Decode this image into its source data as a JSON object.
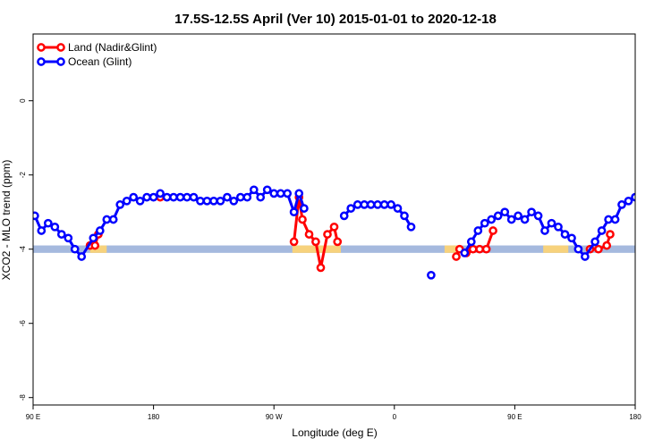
{
  "chart_data": {
    "type": "line",
    "title": "17.5S-12.5S April (Ver 10)   2015-01-01 to 2020-12-18",
    "xlabel": "Longitude (deg E)",
    "ylabel": "XCO2 - MLO trend (ppm)",
    "xlim": [
      90,
      450
    ],
    "ylim": [
      -8.2,
      1.8
    ],
    "x_ticks": [
      {
        "value": 90,
        "label": "90 E"
      },
      {
        "value": 162,
        "label": "180"
      },
      {
        "value": 234,
        "label": "90 W"
      },
      {
        "value": 306,
        "label": "0"
      },
      {
        "value": 378,
        "label": "90 E"
      },
      {
        "value": 450,
        "label": "180"
      }
    ],
    "y_ticks": [
      {
        "value": 0,
        "label": "0"
      },
      {
        "value": -2,
        "label": "-2"
      },
      {
        "value": -4,
        "label": "-4"
      },
      {
        "value": -6,
        "label": "-6"
      },
      {
        "value": -8,
        "label": "-8"
      }
    ],
    "legend_position": "top-left",
    "band": {
      "y_range": [
        -4.1,
        -3.9
      ],
      "color": "#a5b9de"
    },
    "land_segments": [
      [
        124,
        134
      ],
      [
        245,
        274
      ],
      [
        336,
        346
      ],
      [
        395,
        410
      ],
      [
        452,
        466
      ],
      [
        492,
        503
      ],
      [
        552,
        561
      ],
      [
        612,
        620
      ],
      [
        640,
        657
      ]
    ],
    "land_color": "#f7d27c",
    "series": [
      {
        "name": "Land (Nadir&Glint)",
        "color": "#ff0000",
        "segments": [
          [
            [
              124,
              -3.9
            ],
            [
              127,
              -3.9
            ],
            [
              129,
              -3.6
            ]
          ],
          [
            [
              166,
              -2.6
            ]
          ],
          [
            [
              246,
              -3.8
            ],
            [
              249,
              -2.6
            ],
            [
              251,
              -3.2
            ],
            [
              255,
              -3.6
            ],
            [
              259,
              -3.8
            ],
            [
              262,
              -4.5
            ],
            [
              266,
              -3.6
            ],
            [
              270,
              -3.4
            ],
            [
              272,
              -3.8
            ]
          ],
          [
            [
              343,
              -4.2
            ],
            [
              345,
              -4.0
            ],
            [
              349,
              -4.1
            ],
            [
              353,
              -4.0
            ],
            [
              357,
              -4.0
            ],
            [
              361,
              -4.0
            ],
            [
              365,
              -3.5
            ]
          ],
          [
            [
              423,
              -4.0
            ],
            [
              428,
              -4.0
            ],
            [
              433,
              -3.9
            ],
            [
              435,
              -3.6
            ]
          ]
        ]
      },
      {
        "name": "Ocean (Glint)",
        "color": "#0000ff",
        "segments": [
          [
            [
              91,
              -3.1
            ],
            [
              95,
              -3.5
            ],
            [
              99,
              -3.3
            ],
            [
              103,
              -3.4
            ],
            [
              107,
              -3.6
            ],
            [
              111,
              -3.7
            ],
            [
              115,
              -4.0
            ],
            [
              119,
              -4.2
            ],
            [
              126,
              -3.7
            ],
            [
              130,
              -3.5
            ],
            [
              134,
              -3.2
            ],
            [
              138,
              -3.2
            ],
            [
              142,
              -2.8
            ],
            [
              146,
              -2.7
            ],
            [
              150,
              -2.6
            ],
            [
              154,
              -2.7
            ],
            [
              158,
              -2.6
            ],
            [
              162,
              -2.6
            ],
            [
              166,
              -2.5
            ],
            [
              170,
              -2.6
            ],
            [
              174,
              -2.6
            ],
            [
              178,
              -2.6
            ],
            [
              182,
              -2.6
            ],
            [
              186,
              -2.6
            ],
            [
              190,
              -2.7
            ],
            [
              194,
              -2.7
            ],
            [
              198,
              -2.7
            ],
            [
              202,
              -2.7
            ],
            [
              206,
              -2.6
            ],
            [
              210,
              -2.7
            ],
            [
              214,
              -2.6
            ],
            [
              218,
              -2.6
            ],
            [
              222,
              -2.4
            ],
            [
              226,
              -2.6
            ],
            [
              230,
              -2.4
            ],
            [
              234,
              -2.5
            ],
            [
              238,
              -2.5
            ],
            [
              242,
              -2.5
            ],
            [
              246,
              -3.0
            ],
            [
              249,
              -2.5
            ],
            [
              252,
              -2.9
            ]
          ],
          [
            [
              276,
              -3.1
            ],
            [
              280,
              -2.9
            ],
            [
              284,
              -2.8
            ],
            [
              288,
              -2.8
            ],
            [
              292,
              -2.8
            ],
            [
              296,
              -2.8
            ],
            [
              300,
              -2.8
            ],
            [
              304,
              -2.8
            ],
            [
              308,
              -2.9
            ],
            [
              312,
              -3.1
            ],
            [
              316,
              -3.4
            ]
          ],
          [
            [
              328,
              -4.7
            ]
          ],
          [
            [
              348,
              -4.1
            ],
            [
              352,
              -3.8
            ],
            [
              356,
              -3.5
            ],
            [
              360,
              -3.3
            ],
            [
              364,
              -3.2
            ],
            [
              368,
              -3.1
            ],
            [
              372,
              -3.0
            ],
            [
              376,
              -3.2
            ],
            [
              380,
              -3.1
            ],
            [
              384,
              -3.2
            ],
            [
              388,
              -3.0
            ],
            [
              392,
              -3.1
            ],
            [
              396,
              -3.5
            ],
            [
              400,
              -3.3
            ],
            [
              404,
              -3.4
            ],
            [
              408,
              -3.6
            ],
            [
              412,
              -3.7
            ],
            [
              416,
              -4.0
            ],
            [
              420,
              -4.2
            ],
            [
              426,
              -3.8
            ],
            [
              430,
              -3.5
            ],
            [
              434,
              -3.2
            ],
            [
              438,
              -3.2
            ],
            [
              442,
              -2.8
            ],
            [
              446,
              -2.7
            ],
            [
              450,
              -2.6
            ],
            [
              454,
              -2.7
            ],
            [
              458,
              -2.6
            ]
          ]
        ]
      }
    ]
  }
}
